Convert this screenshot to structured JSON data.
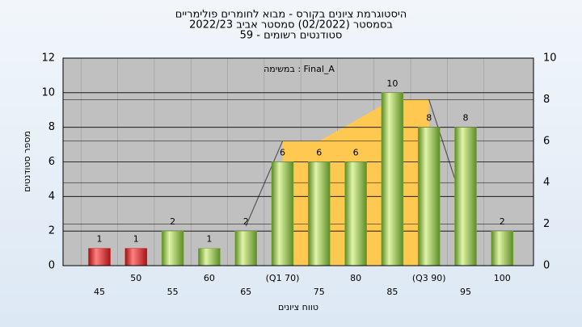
{
  "chart_data": {
    "type": "bar",
    "title": [
      "היסטוגרמת ציונים בקורס - מבוא לחומרים פולימריים",
      "בסמסטר (02/2022) סמסטר אביב 2022/23",
      "סטודנטים רשומים - 59"
    ],
    "annotation": "במשימה : Final_A",
    "xlabel": "טווח ציונים",
    "ylabel": "מספר סטודנטים",
    "categories": [
      "45",
      "50",
      "55",
      "60",
      "65",
      "(Q1 70)",
      "75",
      "80",
      "85",
      "(Q3 90)",
      "95",
      "100"
    ],
    "series": [
      {
        "values": [
          1,
          1,
          2,
          1,
          2,
          6,
          6,
          6,
          10,
          8,
          8,
          2
        ],
        "colors": [
          "#d42020",
          "#d42020",
          "#7aa83a",
          "#7aa83a",
          "#7aa83a",
          "#7aa83a",
          "#7aa83a",
          "#7aa83a",
          "#7aa83a",
          "#7aa83a",
          "#7aa83a",
          "#7aa83a"
        ]
      },
      {
        "type": "area",
        "axis": "y2",
        "color": "#ffc850",
        "values": [
          null,
          null,
          null,
          null,
          null,
          6,
          6,
          7,
          8,
          8,
          null,
          null
        ]
      },
      {
        "type": "line",
        "axis": "y2",
        "color": "#555555",
        "values": [
          null,
          null,
          null,
          null,
          1.9,
          6,
          null,
          null,
          null,
          8,
          2.6,
          null
        ]
      }
    ],
    "ylim": [
      0,
      12
    ],
    "yticks": [
      0,
      2,
      4,
      6,
      8,
      10,
      12
    ],
    "y2lim": [
      0,
      10
    ],
    "y2ticks": [
      0,
      2,
      4,
      6,
      8,
      10
    ],
    "grid": true
  }
}
